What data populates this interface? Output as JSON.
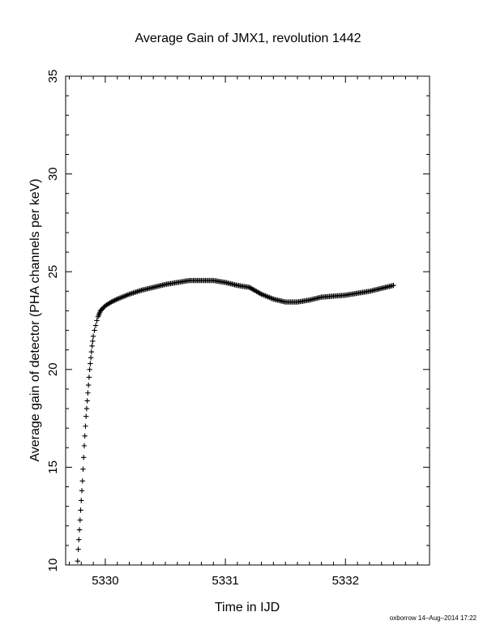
{
  "chart_data": {
    "type": "scatter",
    "title": "Average Gain of JMX1, revolution 1442",
    "xlabel": "Time in IJD",
    "ylabel": "Average gain of detector (PHA channels per keV)",
    "xlim": [
      5329.67,
      5332.7
    ],
    "ylim": [
      10,
      35
    ],
    "xticks": [
      5330,
      5331,
      5332
    ],
    "yticks": [
      10,
      15,
      20,
      25,
      30,
      35
    ],
    "grid": false,
    "marker": "+",
    "color": "#000000",
    "points": [
      [
        5329.77,
        10.2
      ],
      [
        5329.775,
        10.8
      ],
      [
        5329.78,
        11.3
      ],
      [
        5329.785,
        11.8
      ],
      [
        5329.79,
        12.3
      ],
      [
        5329.795,
        12.8
      ],
      [
        5329.8,
        13.3
      ],
      [
        5329.805,
        13.8
      ],
      [
        5329.81,
        14.3
      ],
      [
        5329.815,
        14.9
      ],
      [
        5329.82,
        15.5
      ],
      [
        5329.825,
        16.1
      ],
      [
        5329.83,
        16.6
      ],
      [
        5329.835,
        17.1
      ],
      [
        5329.84,
        17.6
      ],
      [
        5329.845,
        18.0
      ],
      [
        5329.85,
        18.4
      ],
      [
        5329.855,
        18.8
      ],
      [
        5329.86,
        19.2
      ],
      [
        5329.865,
        19.6
      ],
      [
        5329.87,
        20.0
      ],
      [
        5329.875,
        20.3
      ],
      [
        5329.88,
        20.6
      ],
      [
        5329.885,
        20.9
      ],
      [
        5329.89,
        21.2
      ],
      [
        5329.895,
        21.45
      ],
      [
        5329.9,
        21.7
      ],
      [
        5329.91,
        22.0
      ],
      [
        5329.92,
        22.25
      ],
      [
        5329.93,
        22.5
      ],
      [
        5329.94,
        22.7
      ],
      [
        5329.95,
        22.85
      ],
      [
        5329.96,
        23.0
      ],
      [
        5329.975,
        23.1
      ],
      [
        5329.99,
        23.2
      ],
      [
        5330.01,
        23.3
      ],
      [
        5330.05,
        23.45
      ],
      [
        5330.1,
        23.6
      ],
      [
        5330.2,
        23.85
      ],
      [
        5330.3,
        24.05
      ],
      [
        5330.4,
        24.2
      ],
      [
        5330.5,
        24.35
      ],
      [
        5330.6,
        24.45
      ],
      [
        5330.7,
        24.55
      ],
      [
        5330.8,
        24.55
      ],
      [
        5330.9,
        24.55
      ],
      [
        5331.0,
        24.45
      ],
      [
        5331.1,
        24.3
      ],
      [
        5331.2,
        24.2
      ],
      [
        5331.3,
        23.85
      ],
      [
        5331.4,
        23.6
      ],
      [
        5331.5,
        23.45
      ],
      [
        5331.6,
        23.45
      ],
      [
        5331.7,
        23.55
      ],
      [
        5331.8,
        23.7
      ],
      [
        5331.9,
        23.75
      ],
      [
        5332.0,
        23.8
      ],
      [
        5332.1,
        23.9
      ],
      [
        5332.2,
        24.0
      ],
      [
        5332.3,
        24.15
      ],
      [
        5332.4,
        24.3
      ]
    ]
  },
  "footer": {
    "credit": "oxborrow 14–Aug–2014 17:22"
  }
}
